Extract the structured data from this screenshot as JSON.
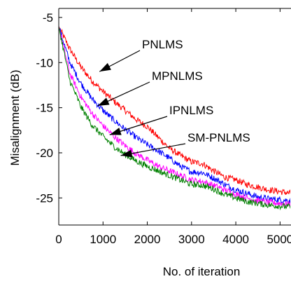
{
  "chart_data": {
    "type": "line",
    "xlabel": "No. of iteration",
    "ylabel": "Misalignment (dB)",
    "xlim": [
      0,
      5500
    ],
    "ylim": [
      -28,
      -4
    ],
    "xticks": [
      0,
      1000,
      2000,
      3000,
      4000,
      5000
    ],
    "xtick_labels": [
      "0",
      "1000",
      "2000",
      "3000",
      "4000",
      "5000"
    ],
    "yticks": [
      -5,
      -10,
      -15,
      -20,
      -25
    ],
    "ytick_labels": [
      "-5",
      "-10",
      "-15",
      "-20",
      "-25"
    ],
    "grid": false,
    "colors": {
      "PNLMS": "#ff0000",
      "MPNLMS": "#0000ff",
      "IPNLMS": "#ff00ff",
      "SM-PNLMS": "#008000"
    },
    "series": [
      {
        "name": "PNLMS",
        "x": [
          0,
          250,
          500,
          750,
          1000,
          1250,
          1500,
          1750,
          2000,
          2250,
          2500,
          2750,
          3000,
          3250,
          3500,
          3750,
          4000,
          4250,
          4500,
          4750,
          5000,
          5250,
          5500
        ],
        "y": [
          -6.0,
          -8.5,
          -10.5,
          -12.0,
          -13.2,
          -14.3,
          -15.3,
          -16.3,
          -17.1,
          -18.3,
          -19.5,
          -20.3,
          -21.0,
          -21.2,
          -22.0,
          -22.7,
          -23.0,
          -23.5,
          -23.8,
          -24.1,
          -24.3,
          -24.5,
          -24.6
        ]
      },
      {
        "name": "MPNLMS",
        "x": [
          0,
          250,
          500,
          750,
          1000,
          1250,
          1500,
          1750,
          2000,
          2250,
          2500,
          2750,
          3000,
          3250,
          3500,
          3750,
          4000,
          4250,
          4500,
          4750,
          5000,
          5250,
          5500
        ],
        "y": [
          -6.0,
          -10.0,
          -12.3,
          -14.0,
          -15.3,
          -16.4,
          -17.4,
          -18.3,
          -19.1,
          -19.8,
          -20.6,
          -21.5,
          -22.1,
          -22.2,
          -22.8,
          -23.5,
          -24.1,
          -24.5,
          -24.9,
          -25.1,
          -25.2,
          -25.3,
          -25.4
        ]
      },
      {
        "name": "IPNLMS",
        "x": [
          0,
          250,
          500,
          750,
          1000,
          1250,
          1500,
          1750,
          2000,
          2250,
          2500,
          2750,
          3000,
          3250,
          3500,
          3750,
          4000,
          4250,
          4500,
          4750,
          5000,
          5250,
          5500
        ],
        "y": [
          -6.0,
          -11.2,
          -13.8,
          -15.6,
          -17.0,
          -18.2,
          -19.2,
          -20.1,
          -20.8,
          -21.5,
          -22.0,
          -22.5,
          -23.0,
          -23.2,
          -23.6,
          -24.1,
          -24.6,
          -25.0,
          -25.3,
          -25.5,
          -25.6,
          -25.7,
          -25.7
        ]
      },
      {
        "name": "SM-PNLMS",
        "x": [
          0,
          250,
          500,
          750,
          1000,
          1250,
          1500,
          1750,
          2000,
          2250,
          2500,
          2750,
          3000,
          3250,
          3500,
          3750,
          4000,
          4250,
          4500,
          4750,
          5000,
          5250,
          5500
        ],
        "y": [
          -6.0,
          -12.0,
          -14.9,
          -16.9,
          -18.2,
          -19.3,
          -20.2,
          -20.9,
          -21.5,
          -22.0,
          -22.5,
          -23.0,
          -23.5,
          -23.6,
          -24.0,
          -24.6,
          -25.0,
          -25.4,
          -25.6,
          -25.8,
          -25.9,
          -26.0,
          -26.0
        ]
      }
    ],
    "annotations": [
      {
        "text": "PNLMS",
        "series": "PNLMS",
        "point_x": 920,
        "point_y": -11.0
      },
      {
        "text": "MPNLMS",
        "series": "MPNLMS",
        "point_x": 880,
        "point_y": -14.8
      },
      {
        "text": "IPNLMS",
        "series": "IPNLMS",
        "point_x": 1150,
        "point_y": -18.0
      },
      {
        "text": "SM-PNLMS",
        "series": "SM-PNLMS",
        "point_x": 1400,
        "point_y": -20.3
      }
    ]
  }
}
